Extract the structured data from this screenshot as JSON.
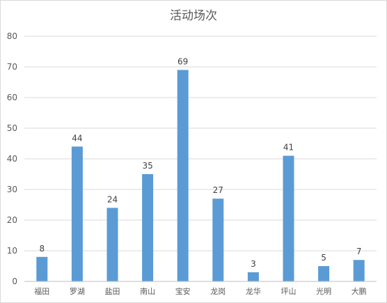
{
  "chart_data": {
    "type": "bar",
    "title": "活动场次",
    "categories": [
      "福田",
      "罗湖",
      "盐田",
      "南山",
      "宝安",
      "龙岗",
      "龙华",
      "坪山",
      "光明",
      "大鹏"
    ],
    "values": [
      8,
      44,
      24,
      35,
      69,
      27,
      3,
      41,
      5,
      7
    ],
    "ylim": [
      0,
      80
    ],
    "yticks": [
      0,
      10,
      20,
      30,
      40,
      50,
      60,
      70,
      80
    ],
    "grid": true,
    "legend": "none",
    "bar_color": "#5b9bd5"
  }
}
